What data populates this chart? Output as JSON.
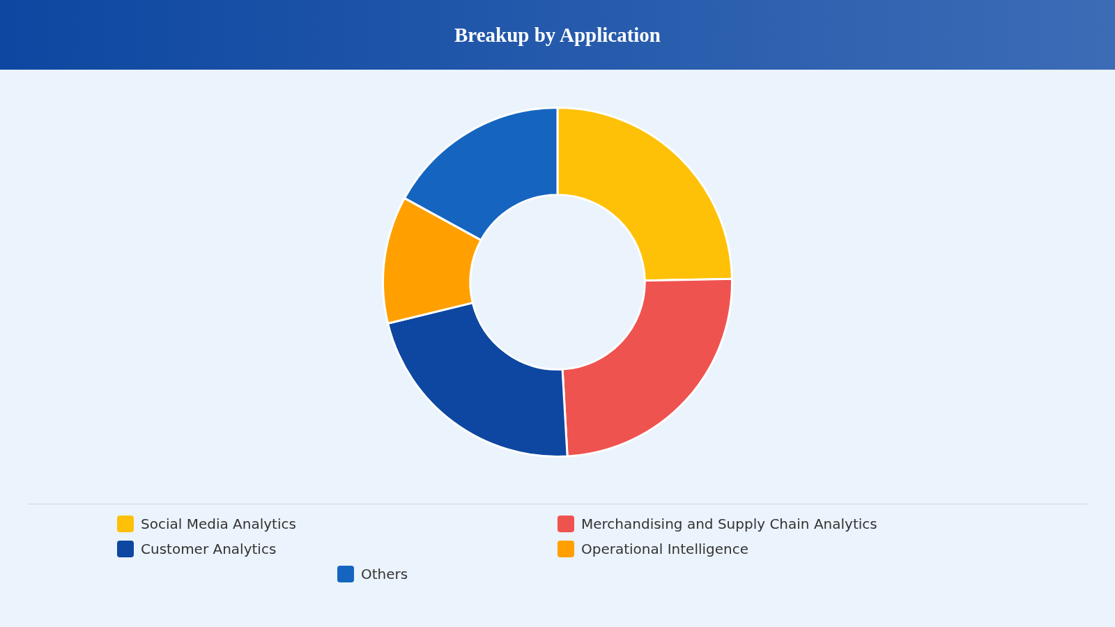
{
  "chart_data": {
    "type": "donut",
    "title": "Breakup by Application",
    "categories": [
      "Social Media Analytics",
      "Merchandising and Supply Chain Analytics",
      "Customer Analytics",
      "Operational Intelligence",
      "Others"
    ],
    "values": [
      24.7,
      24.4,
      22.1,
      11.8,
      17.0
    ],
    "colors": [
      "#ffc107",
      "#ef5350",
      "#0d47a1",
      "#ffa000",
      "#1565c0"
    ],
    "legend": "bottom"
  }
}
